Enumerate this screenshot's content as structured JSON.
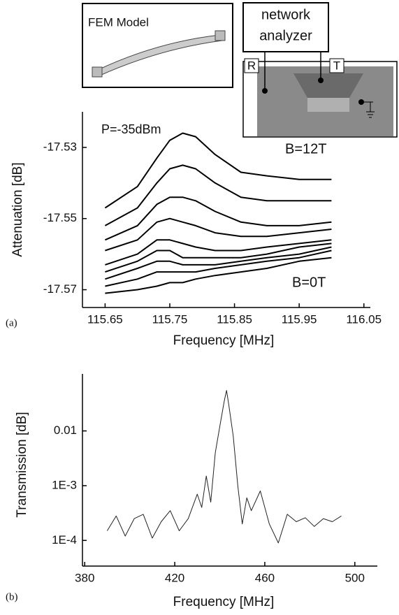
{
  "insets": {
    "fem_label": "FEM Model",
    "network_label": [
      "network",
      "analyzer"
    ],
    "port_r": "R",
    "port_t": "T"
  },
  "chart_data": [
    {
      "type": "line",
      "panel_label": "(a)",
      "x_label": "Frequency [MHz]",
      "y_label": "Attenuation [dB]",
      "annotations": [
        "P=-35dBm",
        "B=12T",
        "B=0T"
      ],
      "color": "#000000",
      "line_width": 2,
      "grid": false,
      "xlim": [
        115.615,
        116.06
      ],
      "xticks": [
        115.65,
        115.75,
        115.85,
        115.95,
        116.05
      ],
      "ylim": [
        -17.575,
        -17.52
      ],
      "yticks": [
        -17.53,
        -17.55,
        -17.57
      ],
      "x": [
        115.65,
        115.7,
        115.73,
        115.75,
        115.77,
        115.79,
        115.82,
        115.86,
        115.9,
        115.95,
        116.0
      ],
      "series": [
        {
          "values": [
            -17.547,
            -17.541,
            -17.533,
            -17.528,
            -17.526,
            -17.527,
            -17.532,
            -17.537,
            -17.538,
            -17.539,
            -17.539
          ]
        },
        {
          "values": [
            -17.552,
            -17.547,
            -17.54,
            -17.536,
            -17.535,
            -17.536,
            -17.54,
            -17.544,
            -17.545,
            -17.545,
            -17.545
          ]
        },
        {
          "values": [
            -17.556,
            -17.552,
            -17.546,
            -17.544,
            -17.544,
            -17.545,
            -17.548,
            -17.551,
            -17.552,
            -17.552,
            -17.551
          ]
        },
        {
          "values": [
            -17.559,
            -17.556,
            -17.551,
            -17.55,
            -17.551,
            -17.552,
            -17.554,
            -17.555,
            -17.555,
            -17.554,
            -17.553
          ]
        },
        {
          "values": [
            -17.563,
            -17.56,
            -17.556,
            -17.556,
            -17.557,
            -17.558,
            -17.559,
            -17.559,
            -17.558,
            -17.557,
            -17.556
          ]
        },
        {
          "values": [
            -17.565,
            -17.562,
            -17.559,
            -17.559,
            -17.561,
            -17.561,
            -17.561,
            -17.561,
            -17.56,
            -17.558,
            -17.557
          ]
        },
        {
          "values": [
            -17.567,
            -17.564,
            -17.562,
            -17.562,
            -17.563,
            -17.563,
            -17.563,
            -17.562,
            -17.561,
            -17.56,
            -17.558
          ]
        },
        {
          "values": [
            -17.569,
            -17.567,
            -17.565,
            -17.565,
            -17.565,
            -17.565,
            -17.564,
            -17.563,
            -17.562,
            -17.561,
            -17.559
          ]
        },
        {
          "values": [
            -17.571,
            -17.57,
            -17.569,
            -17.568,
            -17.568,
            -17.567,
            -17.566,
            -17.565,
            -17.564,
            -17.562,
            -17.561
          ]
        }
      ]
    },
    {
      "type": "line",
      "panel_label": "(b)",
      "x_label": "Frequency [MHz]",
      "y_label": "Transmission [dB]",
      "log_y": true,
      "color": "#222222",
      "line_width": 1,
      "grid": false,
      "xlim": [
        379,
        510
      ],
      "xticks": [
        380,
        420,
        460,
        500
      ],
      "ylim": [
        3.4e-05,
        0.11
      ],
      "yticks": [
        0.01,
        {
          "value": 0.001,
          "label": "1E-3"
        },
        {
          "value": 0.0001,
          "label": "1E-4"
        }
      ],
      "x": [
        390,
        394,
        398,
        402,
        406,
        410,
        414,
        418,
        422,
        426,
        430,
        432,
        434,
        436,
        438,
        440,
        442,
        443,
        444,
        446,
        448,
        450,
        452,
        454,
        458,
        462,
        466,
        470,
        474,
        478,
        482,
        486,
        490,
        494
      ],
      "series": [
        {
          "values": [
            0.00015,
            0.00028,
            0.00012,
            0.00025,
            0.0003,
            0.00011,
            0.00022,
            0.00035,
            0.00015,
            0.00025,
            0.0007,
            0.0004,
            0.0015,
            0.0005,
            0.004,
            0.012,
            0.035,
            0.055,
            0.03,
            0.008,
            0.001,
            0.0002,
            0.0006,
            0.00035,
            0.0008,
            0.0002,
            9e-05,
            0.0003,
            0.00022,
            0.00026,
            0.00018,
            0.00025,
            0.00022,
            0.00028
          ]
        }
      ]
    }
  ]
}
